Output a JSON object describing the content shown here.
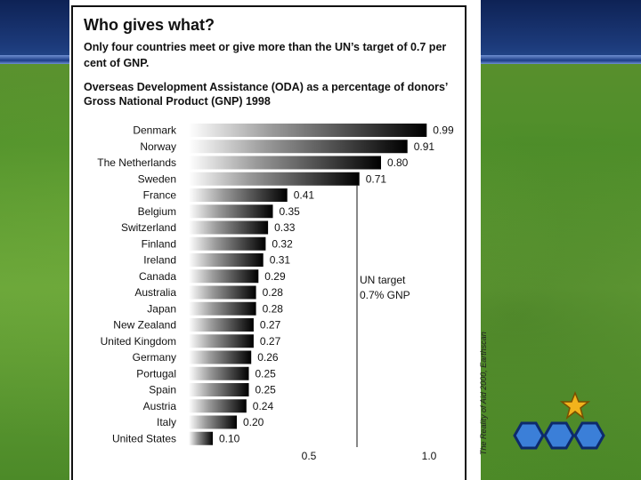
{
  "header": {
    "title": "Who gives what?",
    "subtitle": "Only four countries meet or give more than the UN’s target of 0.7 per cent of GNP."
  },
  "credit": "The Reality of Aid 2000, Earthscan",
  "colors": {
    "bar_dark": "#000000",
    "bar_light": "#ffffff",
    "background_band": "#1c3a7a",
    "background_grass": "#4f8f2a",
    "logo_blue": "#3b7fd8",
    "logo_star": "#f2b31c"
  },
  "icons": [
    "star-icon",
    "hexagon-icon"
  ],
  "chart_data": {
    "type": "bar",
    "orientation": "horizontal",
    "title": "Overseas Development Assistance (ODA) as a percentage of donors’ Gross National Product (GNP) 1998",
    "categories": [
      "Denmark",
      "Norway",
      "The Netherlands",
      "Sweden",
      "France",
      "Belgium",
      "Switzerland",
      "Finland",
      "Ireland",
      "Canada",
      "Australia",
      "Japan",
      "New Zealand",
      "United Kingdom",
      "Germany",
      "Portugal",
      "Spain",
      "Austria",
      "Italy",
      "United States"
    ],
    "values": [
      0.99,
      0.91,
      0.8,
      0.71,
      0.41,
      0.35,
      0.33,
      0.32,
      0.31,
      0.29,
      0.28,
      0.28,
      0.27,
      0.27,
      0.26,
      0.25,
      0.25,
      0.24,
      0.2,
      0.1
    ],
    "value_labels": [
      "0.99",
      "0.91",
      "0.80",
      "0.71",
      "0.41",
      "0.35",
      "0.33",
      "0.32",
      "0.31",
      "0.29",
      "0.28",
      "0.28",
      "0.27",
      "0.27",
      "0.26",
      "0.25",
      "0.25",
      "0.24",
      "0.20",
      "0.10"
    ],
    "xlim": [
      0,
      1.0
    ],
    "xticks": [
      0.5,
      1.0
    ],
    "xtick_labels": [
      "0.5",
      "1.0"
    ],
    "reference_line": {
      "value": 0.7,
      "label_lines": [
        "UN target",
        "0.7% GNP"
      ]
    },
    "grid": false,
    "legend": "none"
  }
}
